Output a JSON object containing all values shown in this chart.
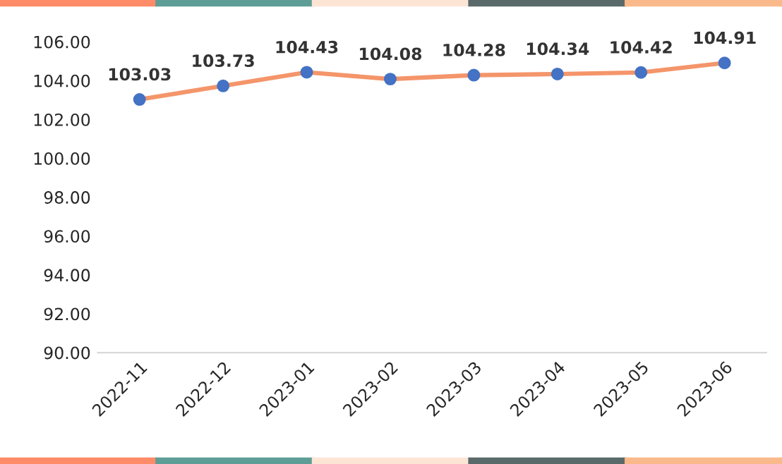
{
  "chart_data": {
    "type": "line",
    "categories": [
      "2022-11",
      "2022-12",
      "2023-01",
      "2023-02",
      "2023-03",
      "2023-04",
      "2023-05",
      "2023-06"
    ],
    "series": [
      {
        "color": "#f4956a",
        "colors": [
          "#4472c4",
          "#4472c4",
          "#4472c4",
          "#4472c4",
          "#4472c4",
          "#4472c4",
          "#4472c4",
          "#4472c4"
        ],
        "values": [
          103.03,
          103.73,
          104.43,
          104.08,
          104.28,
          104.34,
          104.42,
          104.91
        ]
      }
    ],
    "ylim": [
      90,
      106
    ],
    "yticks": [
      {
        "value": 90,
        "label": "90.00"
      },
      {
        "value": 92,
        "label": "92.00"
      },
      {
        "value": 94,
        "label": "94.00"
      },
      {
        "value": 96,
        "label": "96.00"
      },
      {
        "value": 98,
        "label": "98.00"
      },
      {
        "value": 100,
        "label": "100.00"
      },
      {
        "value": 102,
        "label": "102.00"
      },
      {
        "value": 104,
        "label": "104.00"
      },
      {
        "value": 106,
        "label": "106.00"
      }
    ],
    "data_labels": true,
    "marker": "circle",
    "line_style": "solid",
    "grid": false,
    "legend": false
  }
}
